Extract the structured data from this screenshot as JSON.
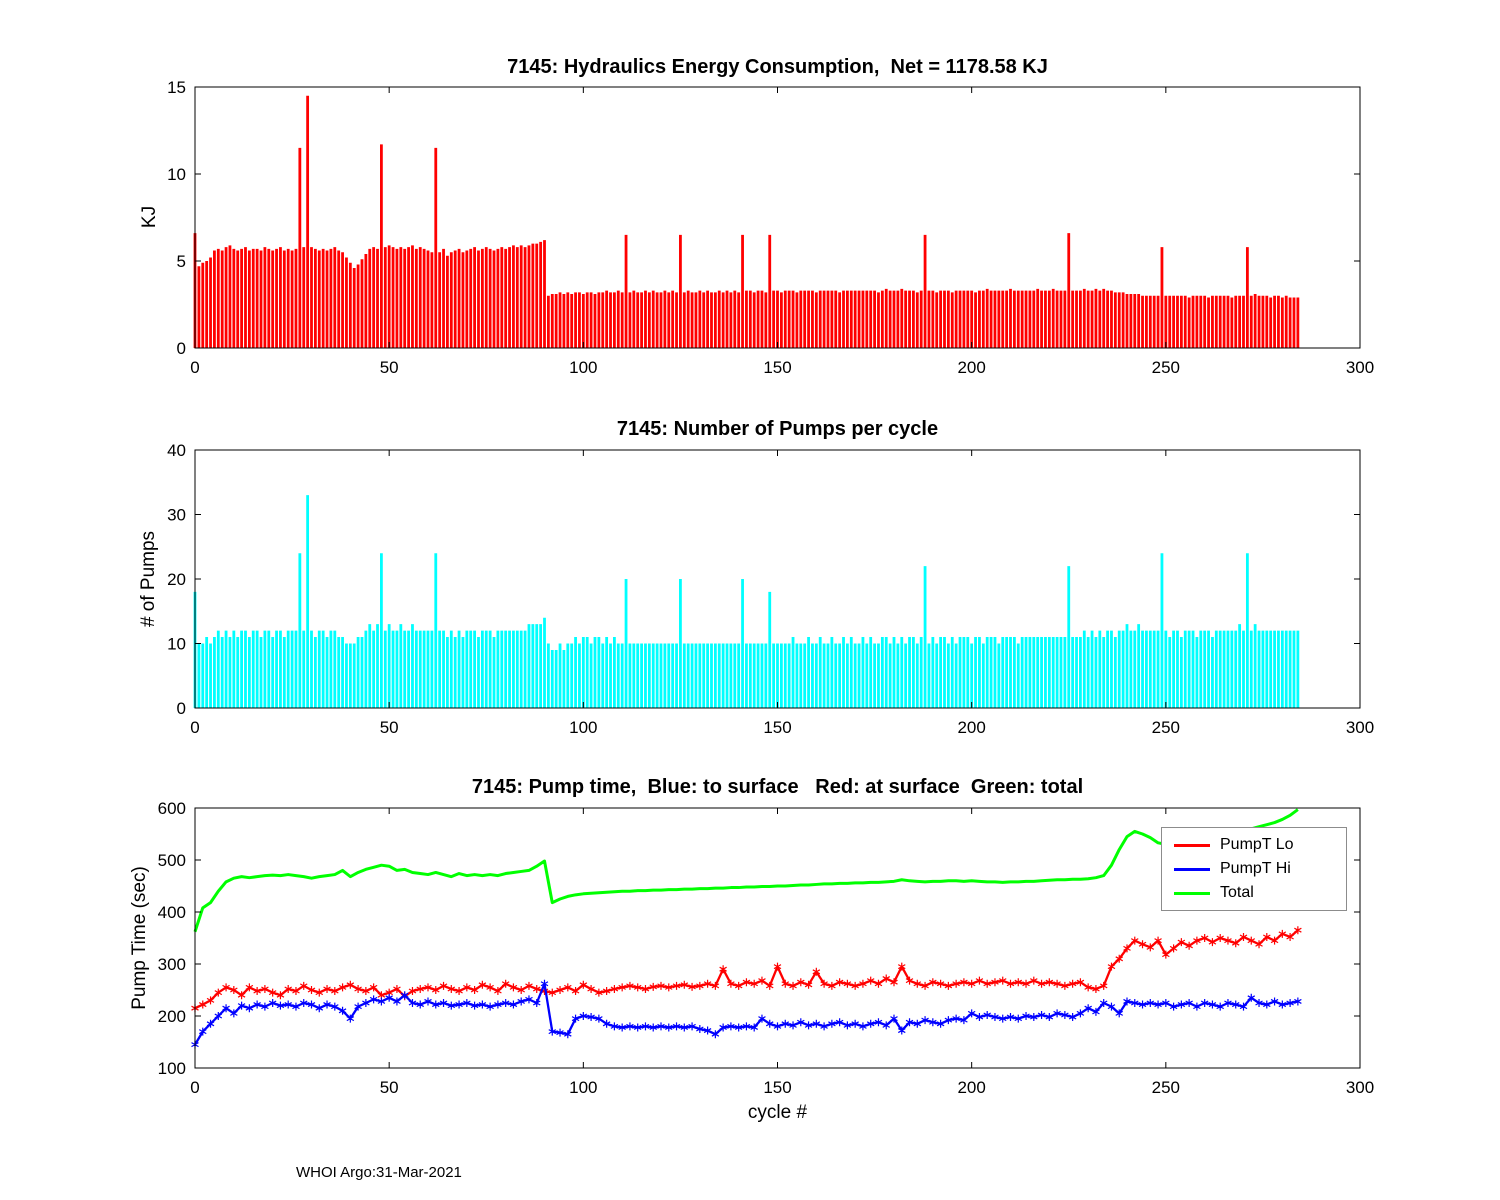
{
  "figure": {
    "footer": "WHOI Argo:31-Mar-2021"
  },
  "chart_data": [
    {
      "type": "bar",
      "title": "7145: Hydraulics Energy Consumption,  Net = 1178.58 KJ",
      "net_kj": 1178.58,
      "xlabel": "",
      "ylabel": "KJ",
      "xlim": [
        0,
        300
      ],
      "ylim": [
        0,
        15
      ],
      "xticks": [
        0,
        50,
        100,
        150,
        200,
        250,
        300
      ],
      "yticks": [
        0,
        5,
        10,
        15
      ],
      "grid": false,
      "color": "#ff0000",
      "values": [
        6.6,
        4.7,
        4.9,
        5.0,
        5.2,
        5.6,
        5.7,
        5.6,
        5.8,
        5.9,
        5.7,
        5.6,
        5.7,
        5.8,
        5.6,
        5.7,
        5.7,
        5.6,
        5.8,
        5.7,
        5.6,
        5.7,
        5.8,
        5.6,
        5.7,
        5.6,
        5.7,
        11.5,
        5.8,
        14.5,
        5.8,
        5.7,
        5.6,
        5.7,
        5.6,
        5.7,
        5.8,
        5.6,
        5.5,
        5.2,
        4.9,
        4.6,
        4.8,
        5.1,
        5.4,
        5.7,
        5.8,
        5.7,
        11.7,
        5.8,
        5.9,
        5.8,
        5.7,
        5.8,
        5.7,
        5.8,
        5.9,
        5.7,
        5.8,
        5.7,
        5.6,
        5.5,
        11.5,
        5.5,
        5.7,
        5.3,
        5.5,
        5.6,
        5.7,
        5.5,
        5.6,
        5.7,
        5.8,
        5.6,
        5.7,
        5.8,
        5.7,
        5.6,
        5.7,
        5.8,
        5.7,
        5.8,
        5.9,
        5.8,
        5.9,
        5.8,
        5.9,
        6.0,
        6.0,
        6.1,
        6.2,
        3.0,
        3.1,
        3.1,
        3.2,
        3.1,
        3.2,
        3.1,
        3.2,
        3.2,
        3.1,
        3.2,
        3.2,
        3.1,
        3.2,
        3.2,
        3.3,
        3.2,
        3.2,
        3.3,
        3.2,
        6.5,
        3.2,
        3.3,
        3.2,
        3.2,
        3.3,
        3.2,
        3.3,
        3.2,
        3.2,
        3.3,
        3.2,
        3.3,
        3.2,
        6.5,
        3.2,
        3.3,
        3.2,
        3.2,
        3.3,
        3.2,
        3.3,
        3.2,
        3.2,
        3.3,
        3.2,
        3.3,
        3.2,
        3.3,
        3.2,
        6.5,
        3.3,
        3.3,
        3.2,
        3.3,
        3.3,
        3.2,
        6.5,
        3.3,
        3.3,
        3.2,
        3.3,
        3.3,
        3.3,
        3.2,
        3.3,
        3.3,
        3.3,
        3.3,
        3.2,
        3.3,
        3.3,
        3.3,
        3.3,
        3.3,
        3.2,
        3.3,
        3.3,
        3.3,
        3.3,
        3.3,
        3.3,
        3.3,
        3.3,
        3.3,
        3.2,
        3.3,
        3.4,
        3.3,
        3.3,
        3.3,
        3.4,
        3.3,
        3.3,
        3.3,
        3.2,
        3.3,
        6.5,
        3.3,
        3.3,
        3.2,
        3.3,
        3.3,
        3.3,
        3.2,
        3.3,
        3.3,
        3.3,
        3.3,
        3.3,
        3.2,
        3.3,
        3.3,
        3.4,
        3.3,
        3.3,
        3.3,
        3.3,
        3.3,
        3.4,
        3.3,
        3.3,
        3.3,
        3.3,
        3.3,
        3.3,
        3.4,
        3.3,
        3.3,
        3.3,
        3.4,
        3.3,
        3.3,
        3.3,
        6.6,
        3.3,
        3.3,
        3.3,
        3.4,
        3.3,
        3.3,
        3.4,
        3.3,
        3.4,
        3.3,
        3.3,
        3.2,
        3.2,
        3.2,
        3.1,
        3.1,
        3.1,
        3.1,
        3.0,
        3.0,
        3.0,
        3.0,
        3.0,
        5.8,
        3.0,
        3.0,
        3.0,
        3.0,
        3.0,
        3.0,
        2.9,
        3.0,
        3.0,
        3.0,
        3.0,
        2.9,
        3.0,
        3.0,
        3.0,
        3.0,
        3.0,
        2.9,
        3.0,
        3.0,
        3.0,
        5.8,
        3.0,
        3.1,
        3.0,
        3.0,
        3.0,
        2.9,
        3.0,
        3.0,
        2.9,
        3.0,
        2.9,
        2.9,
        2.9
      ]
    },
    {
      "type": "bar",
      "title": "7145: Number of Pumps per cycle",
      "xlabel": "",
      "ylabel": "# of Pumps",
      "xlim": [
        0,
        300
      ],
      "ylim": [
        0,
        40
      ],
      "xticks": [
        0,
        50,
        100,
        150,
        200,
        250,
        300
      ],
      "yticks": [
        0,
        10,
        20,
        30,
        40
      ],
      "grid": false,
      "color": "#00ffff",
      "values": [
        18,
        10,
        10,
        11,
        10,
        11,
        12,
        11,
        12,
        11,
        12,
        11,
        12,
        12,
        11,
        12,
        12,
        11,
        12,
        12,
        11,
        12,
        12,
        11,
        12,
        12,
        12,
        24,
        12,
        33,
        12,
        11,
        12,
        12,
        11,
        12,
        12,
        11,
        11,
        10,
        10,
        10,
        11,
        11,
        12,
        13,
        12,
        13,
        24,
        12,
        13,
        12,
        12,
        13,
        12,
        12,
        13,
        12,
        12,
        12,
        12,
        12,
        24,
        12,
        12,
        11,
        12,
        11,
        12,
        11,
        12,
        12,
        12,
        11,
        12,
        12,
        12,
        11,
        12,
        12,
        12,
        12,
        12,
        12,
        12,
        12,
        13,
        13,
        13,
        13,
        14,
        10,
        9,
        9,
        10,
        9,
        10,
        10,
        11,
        10,
        11,
        11,
        10,
        11,
        11,
        10,
        11,
        10,
        11,
        10,
        10,
        20,
        10,
        10,
        10,
        10,
        10,
        10,
        10,
        10,
        10,
        10,
        10,
        10,
        10,
        20,
        10,
        10,
        10,
        10,
        10,
        10,
        10,
        10,
        10,
        10,
        10,
        10,
        10,
        10,
        10,
        20,
        10,
        10,
        10,
        10,
        10,
        10,
        18,
        10,
        10,
        10,
        10,
        10,
        11,
        10,
        10,
        10,
        11,
        10,
        10,
        11,
        10,
        10,
        11,
        10,
        10,
        11,
        10,
        11,
        10,
        10,
        11,
        10,
        11,
        10,
        10,
        11,
        11,
        10,
        11,
        10,
        11,
        10,
        11,
        11,
        10,
        11,
        22,
        10,
        11,
        10,
        11,
        11,
        10,
        11,
        10,
        11,
        11,
        11,
        10,
        11,
        11,
        10,
        11,
        11,
        11,
        10,
        11,
        11,
        11,
        11,
        10,
        11,
        11,
        11,
        11,
        11,
        11,
        11,
        11,
        11,
        11,
        11,
        11,
        22,
        11,
        11,
        11,
        12,
        11,
        12,
        11,
        12,
        11,
        12,
        12,
        11,
        12,
        12,
        13,
        12,
        12,
        13,
        12,
        12,
        12,
        12,
        12,
        24,
        12,
        11,
        12,
        12,
        11,
        12,
        12,
        12,
        11,
        12,
        12,
        12,
        11,
        12,
        12,
        12,
        12,
        12,
        12,
        13,
        12,
        24,
        12,
        13,
        12,
        12,
        12,
        12,
        12,
        12,
        12,
        12,
        12,
        12,
        12
      ]
    },
    {
      "type": "line",
      "title": "7145: Pump time,  Blue: to surface   Red: at surface  Green: total",
      "xlabel": "cycle #",
      "ylabel": "Pump Time (sec)",
      "xlim": [
        0,
        300
      ],
      "ylim": [
        100,
        600
      ],
      "xticks": [
        0,
        50,
        100,
        150,
        200,
        250,
        300
      ],
      "yticks": [
        100,
        200,
        300,
        400,
        500,
        600
      ],
      "grid": false,
      "legend_position": "top-right",
      "x_step": 2,
      "series": [
        {
          "name": "PumpT Lo",
          "color": "#ff0000",
          "marker": "*",
          "width": 2.3,
          "values": [
            215,
            222,
            230,
            245,
            255,
            250,
            240,
            255,
            248,
            252,
            245,
            240,
            252,
            248,
            258,
            250,
            245,
            252,
            248,
            255,
            260,
            252,
            248,
            255,
            240,
            245,
            252,
            238,
            248,
            252,
            255,
            250,
            258,
            252,
            248,
            255,
            250,
            260,
            255,
            248,
            262,
            255,
            250,
            258,
            252,
            248,
            245,
            250,
            255,
            248,
            260,
            252,
            245,
            248,
            252,
            255,
            258,
            255,
            252,
            256,
            258,
            255,
            258,
            260,
            256,
            258,
            262,
            258,
            290,
            262,
            258,
            265,
            262,
            268,
            258,
            295,
            262,
            258,
            265,
            260,
            285,
            262,
            258,
            265,
            262,
            258,
            262,
            268,
            262,
            272,
            265,
            295,
            268,
            262,
            258,
            265,
            262,
            258,
            262,
            265,
            262,
            268,
            262,
            265,
            268,
            262,
            265,
            262,
            268,
            262,
            265,
            262,
            258,
            262,
            265,
            255,
            252,
            258,
            295,
            310,
            330,
            345,
            338,
            332,
            345,
            318,
            330,
            342,
            335,
            345,
            350,
            342,
            350,
            345,
            340,
            352,
            345,
            338,
            352,
            345,
            358,
            352,
            365
          ]
        },
        {
          "name": "PumpT Hi",
          "color": "#0000ff",
          "marker": "*",
          "width": 2.3,
          "values": [
            145,
            170,
            185,
            200,
            215,
            205,
            220,
            215,
            222,
            218,
            225,
            220,
            222,
            218,
            225,
            222,
            215,
            222,
            218,
            210,
            195,
            218,
            225,
            232,
            228,
            235,
            228,
            240,
            225,
            222,
            228,
            222,
            225,
            220,
            222,
            225,
            220,
            222,
            218,
            222,
            225,
            222,
            228,
            232,
            225,
            262,
            170,
            168,
            165,
            195,
            200,
            198,
            195,
            185,
            180,
            178,
            180,
            178,
            180,
            178,
            180,
            178,
            180,
            178,
            180,
            175,
            172,
            165,
            178,
            180,
            178,
            180,
            178,
            195,
            185,
            180,
            185,
            182,
            188,
            182,
            185,
            180,
            185,
            188,
            182,
            185,
            180,
            185,
            188,
            182,
            195,
            172,
            188,
            185,
            192,
            188,
            185,
            192,
            195,
            192,
            205,
            198,
            202,
            198,
            195,
            198,
            195,
            200,
            198,
            202,
            198,
            205,
            202,
            198,
            205,
            215,
            208,
            225,
            218,
            205,
            228,
            225,
            222,
            225,
            222,
            225,
            218,
            222,
            225,
            218,
            225,
            222,
            218,
            225,
            222,
            218,
            235,
            225,
            222,
            228,
            222,
            225,
            228
          ]
        },
        {
          "name": "Total",
          "color": "#00ff00",
          "marker": null,
          "width": 3,
          "values": [
            362,
            408,
            418,
            440,
            458,
            465,
            468,
            466,
            468,
            470,
            471,
            470,
            472,
            470,
            468,
            465,
            468,
            470,
            472,
            480,
            468,
            476,
            482,
            486,
            490,
            488,
            480,
            482,
            476,
            474,
            472,
            476,
            472,
            468,
            474,
            470,
            472,
            470,
            472,
            470,
            474,
            476,
            478,
            480,
            488,
            498,
            418,
            425,
            430,
            433,
            435,
            436,
            437,
            438,
            439,
            440,
            440,
            441,
            441,
            442,
            442,
            443,
            443,
            444,
            444,
            445,
            445,
            446,
            446,
            447,
            447,
            448,
            448,
            449,
            449,
            450,
            450,
            451,
            452,
            452,
            453,
            454,
            454,
            455,
            455,
            456,
            456,
            457,
            457,
            458,
            459,
            462,
            460,
            459,
            458,
            459,
            459,
            460,
            460,
            459,
            460,
            459,
            458,
            458,
            457,
            458,
            458,
            459,
            459,
            460,
            461,
            462,
            462,
            463,
            463,
            464,
            466,
            470,
            490,
            520,
            545,
            555,
            550,
            543,
            533,
            530,
            534,
            538,
            542,
            546,
            548,
            550,
            552,
            554,
            556,
            558,
            560,
            564,
            568,
            572,
            578,
            586,
            597
          ]
        }
      ]
    }
  ]
}
